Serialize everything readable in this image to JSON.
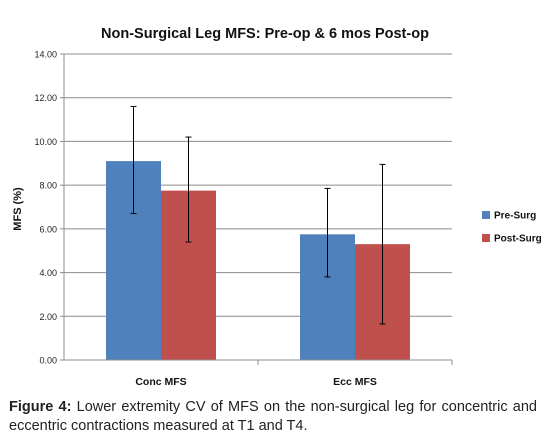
{
  "chart_data": {
    "type": "bar",
    "title": "Non-Surgical Leg MFS: Pre-op & 6 mos Post-op",
    "ylabel": "MFS (%)",
    "xlabel": "",
    "ylim": [
      0,
      14
    ],
    "ytick_values": [
      0,
      2,
      4,
      6,
      8,
      10,
      12,
      14
    ],
    "ytick_labels": [
      "0.00",
      "2.00",
      "4.00",
      "6.00",
      "8.00",
      "10.00",
      "12.00",
      "14.00"
    ],
    "categories": [
      "Conc MFS",
      "Ecc MFS"
    ],
    "grid": true,
    "legend_position": "right",
    "series": [
      {
        "name": "Pre-Surg",
        "color": "#4f81bd",
        "values": [
          9.1,
          5.75
        ],
        "error_low": [
          6.7,
          3.8
        ],
        "error_high": [
          11.6,
          7.85
        ]
      },
      {
        "name": "Post-Surg",
        "color": "#c0504d",
        "values": [
          7.75,
          5.3
        ],
        "error_low": [
          5.4,
          1.65
        ],
        "error_high": [
          10.2,
          8.95
        ]
      }
    ]
  },
  "caption": {
    "label": "Figure 4:",
    "text": " Lower extremity CV of MFS on the non-surgical leg for concentric and eccentric contractions measured at T1 and T4."
  }
}
